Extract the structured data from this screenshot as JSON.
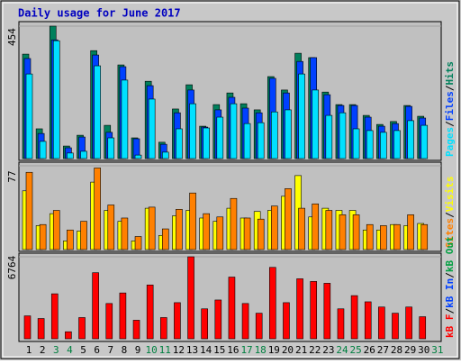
{
  "chart_data": [
    {
      "type": "bar",
      "title": "Daily usage for June 2017",
      "categories": [
        "1",
        "2",
        "3",
        "4",
        "5",
        "6",
        "7",
        "8",
        "9",
        "10",
        "11",
        "12",
        "13",
        "14",
        "15",
        "16",
        "17",
        "18",
        "19",
        "20",
        "21",
        "22",
        "23",
        "24",
        "25",
        "26",
        "27",
        "28",
        "29",
        "30",
        "31"
      ],
      "category_colors": [
        "#000000",
        "#000000",
        "#008040",
        "#008040",
        "#000000",
        "#000000",
        "#000000",
        "#000000",
        "#000000",
        "#008040",
        "#008040",
        "#000000",
        "#000000",
        "#000000",
        "#000000",
        "#000000",
        "#008040",
        "#008040",
        "#000000",
        "#000000",
        "#000000",
        "#000000",
        "#000000",
        "#008040",
        "#008040",
        "#000000",
        "#000000",
        "#000000",
        "#000000",
        "#000000",
        "#008040"
      ],
      "legend_separator": "/",
      "ylim": [
        0,
        454
      ],
      "yticks": [
        454
      ],
      "series": [
        {
          "name": "Hits",
          "color": "#00805c",
          "values": [
            358,
            102,
            454,
            43,
            80,
            370,
            114,
            321,
            71,
            265,
            56,
            170,
            253,
            111,
            185,
            225,
            188,
            167,
            281,
            235,
            361,
            346,
            228,
            185,
            185,
            148,
            117,
            127,
            182,
            145,
            0
          ]
        },
        {
          "name": "Files",
          "color": "#0040ff",
          "values": [
            343,
            86,
            407,
            37,
            74,
            355,
            90,
            315,
            68,
            250,
            49,
            157,
            235,
            108,
            167,
            210,
            173,
            157,
            275,
            225,
            333,
            346,
            219,
            182,
            182,
            142,
            111,
            120,
            179,
            139,
            0
          ]
        },
        {
          "name": "Pages",
          "color": "#00e0ff",
          "values": [
            290,
            59,
            404,
            19,
            25,
            318,
            71,
            269,
            12,
            204,
            22,
            102,
            188,
            105,
            142,
            188,
            120,
            123,
            160,
            167,
            290,
            235,
            148,
            157,
            102,
            96,
            90,
            96,
            130,
            114,
            0
          ]
        }
      ]
    },
    {
      "type": "bar",
      "ylim": [
        0,
        77
      ],
      "yticks": [
        77
      ],
      "series": [
        {
          "name": "Visits",
          "color": "#ffff00",
          "values": [
            54,
            22,
            33,
            8,
            17,
            62,
            36,
            26,
            8,
            38,
            13,
            31,
            36,
            29,
            26,
            38,
            29,
            35,
            36,
            49,
            68,
            30,
            38,
            36,
            36,
            18,
            18,
            23,
            22,
            24,
            0
          ]
        },
        {
          "name": "Sites",
          "color": "#ff8000",
          "values": [
            71,
            23,
            36,
            18,
            26,
            75,
            41,
            29,
            12,
            39,
            19,
            37,
            52,
            33,
            30,
            47,
            29,
            28,
            40,
            56,
            38,
            42,
            36,
            32,
            32,
            23,
            22,
            23,
            32,
            23,
            0
          ]
        }
      ]
    },
    {
      "type": "bar",
      "ylim": [
        0,
        6764
      ],
      "yticks": [
        6764
      ],
      "series": [
        {
          "name": "kB F",
          "color": "#ff0000",
          "values": [
            1890,
            1670,
            3710,
            580,
            1750,
            5450,
            2910,
            3780,
            1530,
            4440,
            1750,
            2980,
            6764,
            2470,
            3200,
            5090,
            2910,
            2110,
            5890,
            2980,
            4950,
            4730,
            4580,
            2470,
            3560,
            3050,
            2620,
            2110,
            2620,
            1820,
            0
          ]
        }
      ],
      "legend_extra": [
        {
          "name": "kB In",
          "color": "#0040ff"
        },
        {
          "name": "kB Out",
          "color": "#00a040"
        }
      ]
    }
  ]
}
